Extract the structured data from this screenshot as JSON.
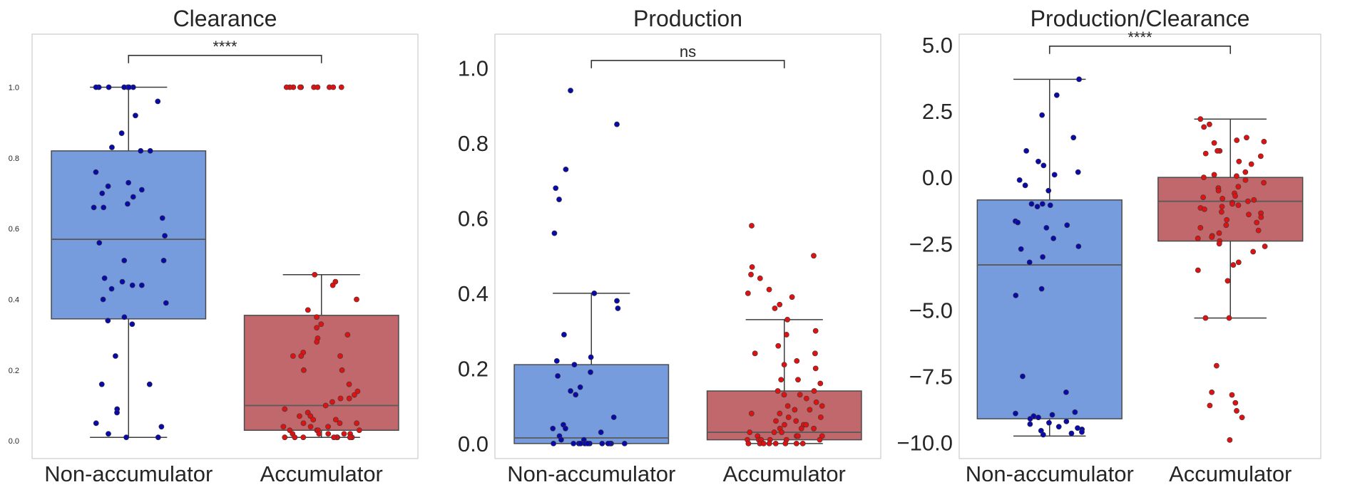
{
  "figure": {
    "background": "#ffffff",
    "frame_color": "#cccccc",
    "median_color": "#5a5a5a",
    "whisker_color": "#3c3c3c",
    "colors": {
      "non_accumulator_box": "#769cde",
      "accumulator_box": "#c0686b",
      "non_accumulator_points": "#0a0aa8",
      "accumulator_points": "#dd1212"
    }
  },
  "chart_data": [
    {
      "type": "box",
      "title": "Clearance",
      "categories": [
        "Non-accumulator",
        "Accumulator"
      ],
      "xlabel": "",
      "ylabel": "",
      "ylim": [
        -0.05,
        1.15
      ],
      "yticks": [
        0.0,
        0.2,
        0.4,
        0.6,
        0.8,
        1.0
      ],
      "ytick_labels": [
        "0.0",
        "0.2",
        "0.4",
        "0.6",
        "0.8",
        "1.0"
      ],
      "tick_font": "small",
      "grid": false,
      "annotation": {
        "text": "****",
        "y": 1.09
      },
      "series": [
        {
          "name": "Non-accumulator",
          "box": {
            "q1": 0.345,
            "median": 0.57,
            "q3": 0.82,
            "whislo": 0.01,
            "whishi": 1.0
          },
          "points": [
            1.0,
            1.0,
            1.0,
            1.0,
            1.0,
            1.0,
            1.0,
            0.96,
            0.92,
            0.87,
            0.83,
            0.82,
            0.82,
            0.76,
            0.73,
            0.72,
            0.71,
            0.7,
            0.69,
            0.67,
            0.66,
            0.66,
            0.63,
            0.58,
            0.56,
            0.51,
            0.51,
            0.46,
            0.45,
            0.44,
            0.44,
            0.43,
            0.4,
            0.39,
            0.35,
            0.34,
            0.33,
            0.24,
            0.16,
            0.16,
            0.09,
            0.08,
            0.05,
            0.04,
            0.02,
            0.01,
            0.01
          ]
        },
        {
          "name": "Accumulator",
          "box": {
            "q1": 0.03,
            "median": 0.1,
            "q3": 0.355,
            "whislo": 0.01,
            "whishi": 0.47
          },
          "points": [
            1.0,
            1.0,
            1.0,
            1.0,
            1.0,
            1.0,
            1.0,
            1.0,
            1.0,
            1.0,
            0.47,
            0.45,
            0.44,
            0.4,
            0.37,
            0.35,
            0.33,
            0.32,
            0.3,
            0.29,
            0.28,
            0.25,
            0.24,
            0.24,
            0.24,
            0.2,
            0.2,
            0.16,
            0.14,
            0.13,
            0.12,
            0.12,
            0.11,
            0.1,
            0.09,
            0.08,
            0.07,
            0.07,
            0.06,
            0.06,
            0.05,
            0.05,
            0.05,
            0.04,
            0.04,
            0.04,
            0.03,
            0.03,
            0.03,
            0.03,
            0.02,
            0.02,
            0.02,
            0.02,
            0.02,
            0.01,
            0.01,
            0.01,
            0.01,
            0.01,
            0.01,
            0.01,
            0.01
          ]
        }
      ]
    },
    {
      "type": "box",
      "title": "Production",
      "categories": [
        "Non-accumulator",
        "Accumulator"
      ],
      "xlabel": "",
      "ylabel": "",
      "ylim": [
        -0.04,
        1.09
      ],
      "yticks": [
        0.0,
        0.2,
        0.4,
        0.6,
        0.8,
        1.0
      ],
      "ytick_labels": [
        "0.0",
        "0.2",
        "0.4",
        "0.6",
        "0.8",
        "1.0"
      ],
      "tick_font": "large",
      "grid": false,
      "annotation": {
        "text": "ns",
        "y": 1.02
      },
      "series": [
        {
          "name": "Non-accumulator",
          "box": {
            "q1": 0.0,
            "median": 0.015,
            "q3": 0.21,
            "whislo": 0.0,
            "whishi": 0.4
          },
          "points": [
            0.94,
            0.85,
            0.73,
            0.68,
            0.65,
            0.56,
            0.4,
            0.38,
            0.36,
            0.29,
            0.23,
            0.22,
            0.21,
            0.19,
            0.18,
            0.15,
            0.14,
            0.13,
            0.07,
            0.05,
            0.04,
            0.04,
            0.03,
            0.02,
            0.01,
            0.01,
            0.0,
            0.0,
            0.0,
            0.0,
            0.0,
            0.0,
            0.0,
            0.0,
            0.0,
            0.0,
            0.0,
            0.0
          ]
        },
        {
          "name": "Accumulator",
          "box": {
            "q1": 0.01,
            "median": 0.03,
            "q3": 0.14,
            "whislo": 0.0,
            "whishi": 0.33
          },
          "points": [
            0.58,
            0.5,
            0.47,
            0.45,
            0.44,
            0.41,
            0.4,
            0.39,
            0.37,
            0.36,
            0.33,
            0.3,
            0.29,
            0.26,
            0.24,
            0.24,
            0.22,
            0.21,
            0.2,
            0.17,
            0.17,
            0.16,
            0.14,
            0.14,
            0.13,
            0.13,
            0.12,
            0.11,
            0.1,
            0.1,
            0.09,
            0.09,
            0.08,
            0.08,
            0.07,
            0.07,
            0.06,
            0.06,
            0.05,
            0.05,
            0.05,
            0.04,
            0.04,
            0.04,
            0.03,
            0.03,
            0.03,
            0.02,
            0.02,
            0.02,
            0.02,
            0.01,
            0.01,
            0.01,
            0.01,
            0.01,
            0.01,
            0.0,
            0.0,
            0.0,
            0.0,
            0.0,
            0.0,
            0.0,
            0.0
          ]
        }
      ]
    },
    {
      "type": "box",
      "title": "Production/Clearance",
      "categories": [
        "Non-accumulator",
        "Accumulator"
      ],
      "xlabel": "",
      "ylabel": "",
      "ylim": [
        -10.6,
        5.4
      ],
      "yticks": [
        -10.0,
        -7.5,
        -5.0,
        -2.5,
        0.0,
        2.5,
        5.0
      ],
      "ytick_labels": [
        "−10.0",
        "−7.5",
        "−5.0",
        "−2.5",
        "0.0",
        "2.5",
        "5.0"
      ],
      "tick_font": "large",
      "grid": false,
      "annotation": {
        "text": "****",
        "y": 4.95
      },
      "series": [
        {
          "name": "Non-accumulator",
          "box": {
            "q1": -9.1,
            "median": -3.3,
            "q3": -0.85,
            "whislo": -9.75,
            "whishi": 3.7
          },
          "points": [
            3.7,
            3.1,
            2.35,
            1.5,
            1.0,
            0.6,
            0.45,
            0.2,
            0.1,
            -0.1,
            -0.3,
            -0.5,
            -1.0,
            -1.0,
            -1.05,
            -1.1,
            -1.65,
            -1.7,
            -1.8,
            -1.9,
            -2.3,
            -2.6,
            -2.7,
            -3.0,
            -3.2,
            -4.2,
            -4.45,
            -7.5,
            -8.1,
            -8.85,
            -8.9,
            -8.95,
            -9.0,
            -9.05,
            -9.1,
            -9.2,
            -9.25,
            -9.3,
            -9.4,
            -9.45,
            -9.5,
            -9.55,
            -9.6,
            -9.65,
            -9.7
          ]
        },
        {
          "name": "Accumulator",
          "box": {
            "q1": -2.4,
            "median": -0.9,
            "q3": 0.0,
            "whislo": -5.3,
            "whishi": 2.2
          },
          "points": [
            2.2,
            2.0,
            1.9,
            1.5,
            1.4,
            1.35,
            1.3,
            1.0,
            1.0,
            0.9,
            0.8,
            0.6,
            0.5,
            0.2,
            0.1,
            0.05,
            0.0,
            -0.1,
            -0.2,
            -0.35,
            -0.4,
            -0.5,
            -0.6,
            -0.7,
            -0.75,
            -0.8,
            -0.85,
            -0.9,
            -0.95,
            -1.0,
            -1.05,
            -1.1,
            -1.15,
            -1.2,
            -1.3,
            -1.35,
            -1.4,
            -1.5,
            -1.6,
            -1.7,
            -1.8,
            -1.9,
            -2.0,
            -2.1,
            -2.2,
            -2.25,
            -2.3,
            -2.4,
            -2.5,
            -2.6,
            -2.8,
            -3.2,
            -3.3,
            -3.5,
            -3.9,
            -5.3,
            -5.3,
            -7.1,
            -8.1,
            -8.2,
            -8.5,
            -8.6,
            -8.8,
            -9.05,
            -9.9
          ]
        }
      ]
    }
  ]
}
